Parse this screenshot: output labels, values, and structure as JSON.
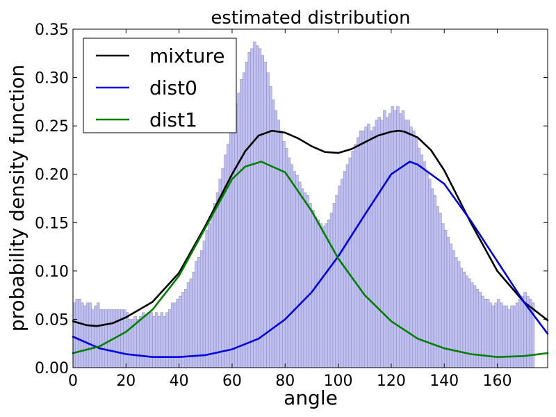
{
  "chart_data": {
    "type": "bar",
    "title": "estimated distribution",
    "xlabel": "angle",
    "ylabel": "probability density function",
    "xlim": [
      0,
      179
    ],
    "ylim": [
      0,
      0.35
    ],
    "xticks": [
      0,
      20,
      40,
      60,
      80,
      100,
      120,
      140,
      160
    ],
    "yticks": [
      "0.00",
      "0.05",
      "0.10",
      "0.15",
      "0.20",
      "0.25",
      "0.30",
      "0.35"
    ],
    "grid": false,
    "legend_position": "top-left",
    "legend": [
      "mixture",
      "dist0",
      "dist1"
    ],
    "histogram": {
      "bin_width": 1,
      "color": "#bfbff0",
      "values": [
        0.067,
        0.071,
        0.071,
        0.067,
        0.064,
        0.067,
        0.067,
        0.06,
        0.064,
        0.067,
        0.06,
        0.06,
        0.06,
        0.06,
        0.06,
        0.06,
        0.06,
        0.06,
        0.06,
        0.06,
        0.057,
        0.05,
        0.05,
        0.053,
        0.05,
        0.053,
        0.057,
        0.053,
        0.057,
        0.057,
        0.053,
        0.057,
        0.053,
        0.057,
        0.053,
        0.057,
        0.06,
        0.067,
        0.067,
        0.071,
        0.074,
        0.078,
        0.081,
        0.088,
        0.092,
        0.099,
        0.11,
        0.114,
        0.121,
        0.131,
        0.142,
        0.149,
        0.16,
        0.17,
        0.181,
        0.195,
        0.206,
        0.22,
        0.231,
        0.245,
        0.259,
        0.273,
        0.284,
        0.298,
        0.305,
        0.316,
        0.326,
        0.33,
        0.337,
        0.333,
        0.33,
        0.323,
        0.316,
        0.305,
        0.291,
        0.277,
        0.266,
        0.256,
        0.245,
        0.234,
        0.227,
        0.217,
        0.21,
        0.203,
        0.199,
        0.192,
        0.185,
        0.181,
        0.178,
        0.17,
        0.163,
        0.156,
        0.153,
        0.149,
        0.146,
        0.149,
        0.153,
        0.16,
        0.17,
        0.178,
        0.188,
        0.195,
        0.203,
        0.21,
        0.217,
        0.224,
        0.231,
        0.238,
        0.245,
        0.245,
        0.249,
        0.252,
        0.245,
        0.249,
        0.256,
        0.259,
        0.256,
        0.266,
        0.259,
        0.263,
        0.27,
        0.266,
        0.27,
        0.263,
        0.266,
        0.256,
        0.256,
        0.249,
        0.245,
        0.238,
        0.227,
        0.22,
        0.213,
        0.203,
        0.195,
        0.185,
        0.178,
        0.167,
        0.16,
        0.149,
        0.142,
        0.135,
        0.128,
        0.121,
        0.114,
        0.11,
        0.103,
        0.099,
        0.095,
        0.092,
        0.088,
        0.085,
        0.081,
        0.078,
        0.074,
        0.071,
        0.071,
        0.067,
        0.064,
        0.067,
        0.071,
        0.067,
        0.064,
        0.064,
        0.06,
        0.064,
        0.064,
        0.067,
        0.071,
        0.074,
        0.078,
        0.074,
        0.071,
        0.067
      ]
    },
    "series": [
      {
        "name": "mixture",
        "color": "#000000",
        "x": [
          0,
          5,
          9,
          15,
          20,
          30,
          40,
          50,
          60,
          65,
          70,
          75,
          80,
          85,
          90,
          95,
          100,
          105,
          110,
          115,
          120,
          123,
          125,
          130,
          135,
          140,
          150,
          160,
          170,
          179
        ],
        "y": [
          0.048,
          0.044,
          0.043,
          0.046,
          0.052,
          0.068,
          0.098,
          0.147,
          0.2,
          0.224,
          0.24,
          0.245,
          0.243,
          0.237,
          0.229,
          0.223,
          0.222,
          0.226,
          0.233,
          0.24,
          0.244,
          0.245,
          0.244,
          0.238,
          0.225,
          0.204,
          0.15,
          0.1,
          0.068,
          0.049
        ]
      },
      {
        "name": "dist0",
        "color": "#0000e0",
        "x": [
          0,
          10,
          20,
          30,
          36,
          40,
          50,
          60,
          70,
          80,
          90,
          100,
          110,
          120,
          127,
          130,
          140,
          150,
          160,
          170,
          179
        ],
        "y": [
          0.032,
          0.02,
          0.014,
          0.011,
          0.011,
          0.011,
          0.013,
          0.019,
          0.03,
          0.05,
          0.078,
          0.115,
          0.158,
          0.2,
          0.213,
          0.21,
          0.19,
          0.152,
          0.11,
          0.068,
          0.035
        ]
      },
      {
        "name": "dist1",
        "color": "#007f00",
        "x": [
          0,
          10,
          20,
          30,
          40,
          50,
          60,
          65,
          71,
          80,
          90,
          100,
          110,
          120,
          130,
          140,
          150,
          160,
          170,
          179
        ],
        "y": [
          0.015,
          0.022,
          0.037,
          0.06,
          0.095,
          0.145,
          0.195,
          0.208,
          0.213,
          0.202,
          0.162,
          0.113,
          0.075,
          0.048,
          0.03,
          0.02,
          0.014,
          0.011,
          0.012,
          0.015
        ]
      }
    ]
  }
}
